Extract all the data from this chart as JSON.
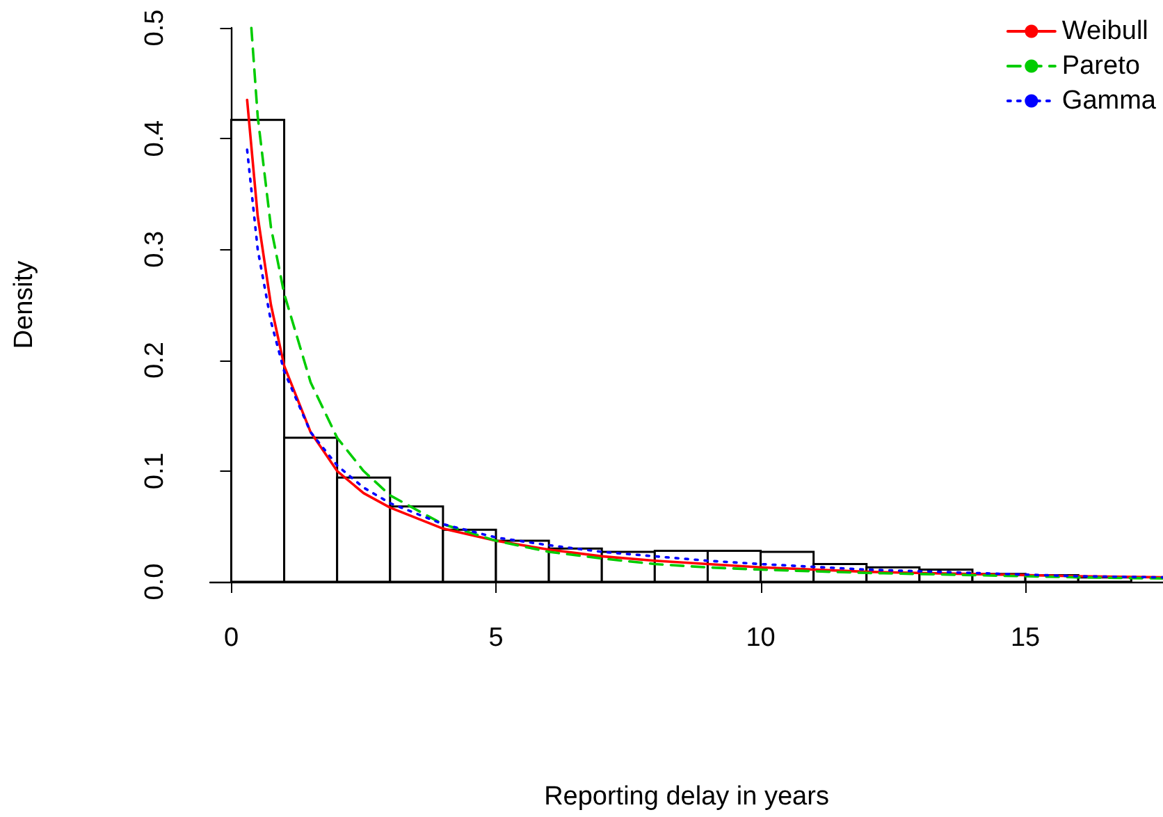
{
  "chart_data": {
    "type": "histogram",
    "xlabel": "Reporting delay in years",
    "ylabel": "Density",
    "bins": [
      0,
      1,
      2,
      3,
      4,
      5,
      6,
      7,
      8,
      9,
      10,
      11,
      12,
      13,
      14,
      15,
      16,
      17
    ],
    "values": [
      0.417,
      0.13,
      0.094,
      0.068,
      0.047,
      0.037,
      0.03,
      0.027,
      0.028,
      0.028,
      0.027,
      0.016,
      0.013,
      0.011,
      0.007,
      0.006,
      0.004
    ],
    "color": "#ffffff",
    "xlim": [
      -0.4,
      17.6
    ],
    "xticks": [
      0,
      5,
      10,
      15
    ],
    "ylim": [
      0,
      0.5
    ],
    "yticks": [
      {
        "value": 0,
        "label": "0.0"
      },
      0.1,
      0.2,
      0.3,
      0.4,
      0.5
    ],
    "grid": false,
    "legend": "top right",
    "series": [
      {
        "type": "line",
        "name": "Weibull",
        "color": "#ff0000",
        "line_style": "solid",
        "x": [
          0.3,
          0.5,
          0.75,
          1,
          1.5,
          2,
          2.5,
          3,
          4,
          5,
          6,
          7,
          8,
          9,
          10,
          12,
          14,
          16,
          17.6
        ],
        "values": [
          0.435,
          0.33,
          0.25,
          0.195,
          0.135,
          0.1,
          0.08,
          0.067,
          0.048,
          0.037,
          0.029,
          0.023,
          0.019,
          0.016,
          0.013,
          0.009,
          0.007,
          0.005,
          0.004
        ]
      },
      {
        "type": "line",
        "name": "Pareto",
        "color": "#00cc00",
        "line_style": "dashed",
        "x": [
          0.38,
          0.5,
          0.75,
          1,
          1.5,
          2,
          2.5,
          3,
          4,
          5,
          6,
          7,
          8,
          9,
          10,
          12,
          14,
          16,
          17.6
        ],
        "values": [
          0.5,
          0.42,
          0.32,
          0.26,
          0.18,
          0.13,
          0.1,
          0.078,
          0.052,
          0.037,
          0.027,
          0.021,
          0.016,
          0.013,
          0.011,
          0.008,
          0.006,
          0.004,
          0.003
        ]
      },
      {
        "type": "line",
        "name": "Gamma",
        "color": "#0000ff",
        "line_style": "dotted",
        "x": [
          0.3,
          0.5,
          0.75,
          1,
          1.5,
          2,
          2.5,
          3,
          4,
          5,
          6,
          7,
          8,
          9,
          10,
          12,
          14,
          16,
          17.6
        ],
        "values": [
          0.39,
          0.3,
          0.235,
          0.19,
          0.135,
          0.105,
          0.085,
          0.071,
          0.052,
          0.04,
          0.033,
          0.027,
          0.023,
          0.019,
          0.016,
          0.011,
          0.008,
          0.005,
          0.004
        ]
      }
    ]
  }
}
